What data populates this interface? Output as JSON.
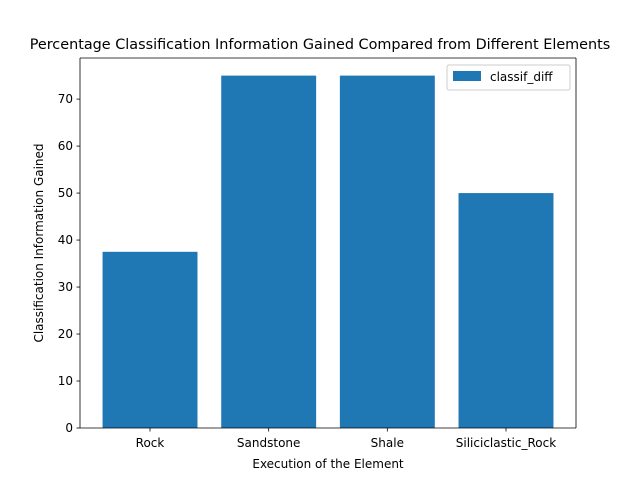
{
  "chart_data": {
    "type": "bar",
    "title": "Percentage Classification Information Gained Compared from Different Elements",
    "xlabel": "Execution of the Element",
    "ylabel": "Classification Information Gained",
    "categories": [
      "Rock",
      "Sandstone",
      "Shale",
      "Siliciclastic_Rock"
    ],
    "series": [
      {
        "name": "classif_diff",
        "values": [
          37.5,
          75,
          75,
          50
        ],
        "color": "#1f77b4"
      }
    ],
    "ylim": [
      0,
      78.75
    ],
    "yticks": [
      0,
      10,
      20,
      30,
      40,
      50,
      60,
      70
    ],
    "grid": false,
    "legend_position": "upper right"
  }
}
